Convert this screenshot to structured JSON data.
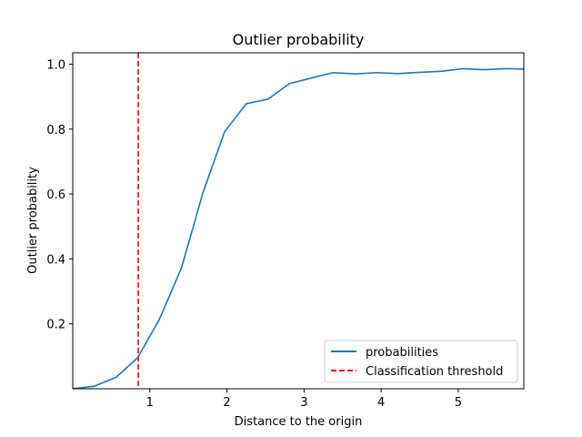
{
  "chart_data": {
    "type": "line",
    "title": "Outlier probability",
    "xlabel": "Distance to the origin",
    "ylabel": "Outlier probability",
    "xlim": [
      0.0,
      5.85
    ],
    "ylim": [
      0.0,
      1.035
    ],
    "xticks": [
      1,
      2,
      3,
      4,
      5
    ],
    "yticks": [
      0.2,
      0.4,
      0.6,
      0.8,
      1.0
    ],
    "grid": false,
    "legend_position": "lower-right",
    "series": [
      {
        "name": "probabilities",
        "color": "#1f77b4",
        "style": "solid",
        "x": [
          0.0,
          0.28,
          0.56,
          0.84,
          1.12,
          1.41,
          1.69,
          1.97,
          2.25,
          2.53,
          2.81,
          3.09,
          3.38,
          3.66,
          3.94,
          4.22,
          4.5,
          4.78,
          5.06,
          5.34,
          5.62,
          5.85
        ],
        "y": [
          0.0,
          0.008,
          0.035,
          0.095,
          0.212,
          0.372,
          0.605,
          0.792,
          0.878,
          0.892,
          0.94,
          0.957,
          0.974,
          0.97,
          0.974,
          0.971,
          0.975,
          0.978,
          0.986,
          0.983,
          0.986,
          0.985
        ]
      }
    ],
    "threshold": {
      "name": "Classification threshold",
      "color": "#ff0000",
      "style": "dashed",
      "x": 0.85
    }
  }
}
